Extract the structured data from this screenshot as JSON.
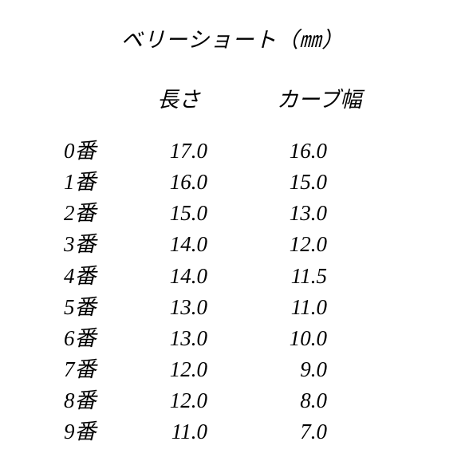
{
  "title": "ベリーショート（㎜）",
  "headers": {
    "length": "長さ",
    "curve": "カーブ幅"
  },
  "rows": [
    {
      "label": "0番",
      "length": "17.0",
      "curve": "16.0"
    },
    {
      "label": "1番",
      "length": "16.0",
      "curve": "15.0"
    },
    {
      "label": "2番",
      "length": "15.0",
      "curve": "13.0"
    },
    {
      "label": "3番",
      "length": "14.0",
      "curve": "12.0"
    },
    {
      "label": "4番",
      "length": "14.0",
      "curve": "11.5"
    },
    {
      "label": "5番",
      "length": "13.0",
      "curve": "11.0"
    },
    {
      "label": "6番",
      "length": "13.0",
      "curve": "10.0"
    },
    {
      "label": "7番",
      "length": "12.0",
      "curve": "9.0"
    },
    {
      "label": "8番",
      "length": "12.0",
      "curve": "8.0"
    },
    {
      "label": "9番",
      "length": "11.0",
      "curve": "7.0"
    }
  ],
  "style": {
    "background_color": "#ffffff",
    "text_color": "#000000",
    "font_style": "italic",
    "title_fontsize": 27,
    "header_fontsize": 27,
    "row_fontsize": 27,
    "line_height": 1.45
  }
}
